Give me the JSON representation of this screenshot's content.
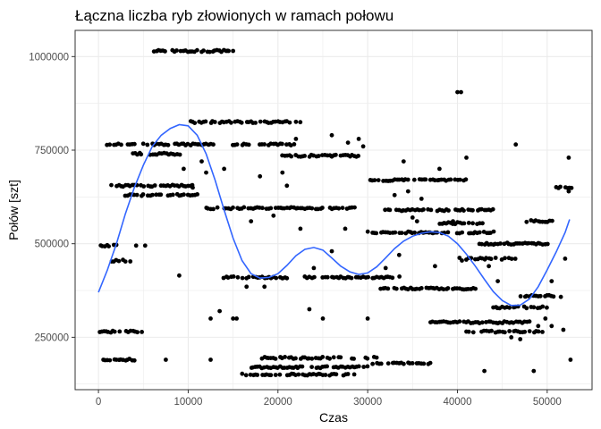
{
  "chart_data": {
    "type": "scatter",
    "title": "Łączna liczba ryb złowionych w ramach połowu",
    "xlabel": "Czas",
    "ylabel": "Połów [szt]",
    "xlim": [
      -2600,
      55000
    ],
    "ylim": [
      110000,
      1070000
    ],
    "x_ticks": [
      0,
      10000,
      20000,
      30000,
      40000,
      50000
    ],
    "y_ticks": [
      250000,
      500000,
      750000,
      1000000
    ],
    "x_tick_labels": [
      "0",
      "10000",
      "20000",
      "30000",
      "40000",
      "50000"
    ],
    "y_tick_labels": [
      "250000",
      "500000",
      "750000",
      "1000000"
    ],
    "grid": true,
    "legend": "none",
    "colors": {
      "points": "#000000",
      "smooth": "#3366ff",
      "grid": "#ebebeb",
      "border": "#333333"
    },
    "point_bands": [
      [
        100,
        5000,
        265000
      ],
      [
        500,
        4800,
        190000
      ],
      [
        1000,
        3800,
        455000
      ],
      [
        200,
        2600,
        495000
      ],
      [
        6200,
        14600,
        1015000
      ],
      [
        1000,
        13200,
        765000
      ],
      [
        3800,
        9200,
        740000
      ],
      [
        1500,
        10500,
        655000
      ],
      [
        3000,
        11000,
        630000
      ],
      [
        10000,
        22500,
        825000
      ],
      [
        12000,
        28500,
        595000
      ],
      [
        15000,
        22000,
        765000
      ],
      [
        20000,
        29000,
        735000
      ],
      [
        14000,
        21000,
        410000
      ],
      [
        23000,
        33500,
        410000
      ],
      [
        18000,
        31000,
        195000
      ],
      [
        17000,
        30000,
        170000
      ],
      [
        16000,
        28500,
        150000
      ],
      [
        30000,
        41000,
        670000
      ],
      [
        32000,
        44000,
        590000
      ],
      [
        30000,
        44000,
        530000
      ],
      [
        31500,
        42000,
        380000
      ],
      [
        37000,
        48000,
        290000
      ],
      [
        41000,
        49500,
        265000
      ],
      [
        30000,
        37000,
        180000
      ],
      [
        38000,
        43000,
        555000
      ],
      [
        42500,
        50000,
        500000
      ],
      [
        40000,
        46500,
        460000
      ],
      [
        44000,
        50000,
        330000
      ],
      [
        47000,
        51500,
        360000
      ],
      [
        51000,
        52800,
        650000
      ],
      [
        47500,
        50500,
        560000
      ]
    ],
    "points": [
      [
        40000,
        905000
      ],
      [
        40400,
        905000
      ],
      [
        21000,
        655000
      ],
      [
        9000,
        415000
      ],
      [
        23500,
        325000
      ],
      [
        13500,
        320000
      ],
      [
        15400,
        300000
      ],
      [
        25000,
        300000
      ],
      [
        30000,
        300000
      ],
      [
        12500,
        300000
      ],
      [
        15000,
        300000
      ],
      [
        7500,
        190000
      ],
      [
        12500,
        190000
      ],
      [
        41000,
        730000
      ],
      [
        46500,
        765000
      ],
      [
        40500,
        455000
      ],
      [
        43000,
        160000
      ],
      [
        48500,
        160000
      ],
      [
        29500,
        760000
      ],
      [
        34000,
        720000
      ],
      [
        52400,
        730000
      ],
      [
        52600,
        190000
      ],
      [
        52000,
        460000
      ],
      [
        52400,
        640000
      ],
      [
        14500,
        1015000
      ],
      [
        15000,
        1015000
      ],
      [
        5200,
        495000
      ],
      [
        4200,
        495000
      ],
      [
        22500,
        540000
      ],
      [
        27500,
        540000
      ],
      [
        26000,
        480000
      ],
      [
        38000,
        700000
      ],
      [
        36000,
        620000
      ],
      [
        33500,
        470000
      ],
      [
        43500,
        440000
      ],
      [
        37500,
        440000
      ],
      [
        32000,
        435000
      ],
      [
        44500,
        400000
      ],
      [
        50500,
        400000
      ],
      [
        41500,
        590000
      ],
      [
        35500,
        560000
      ],
      [
        39500,
        560000
      ],
      [
        49800,
        300000
      ],
      [
        49000,
        280000
      ],
      [
        27800,
        770000
      ],
      [
        29000,
        780000
      ],
      [
        17000,
        560000
      ],
      [
        19500,
        575000
      ],
      [
        16500,
        385000
      ],
      [
        18500,
        385000
      ],
      [
        24000,
        435000
      ],
      [
        10500,
        650000
      ],
      [
        18000,
        680000
      ],
      [
        20500,
        690000
      ],
      [
        11500,
        720000
      ],
      [
        9500,
        700000
      ],
      [
        33000,
        630000
      ],
      [
        34500,
        640000
      ],
      [
        35000,
        570000
      ],
      [
        37000,
        290000
      ],
      [
        46000,
        250000
      ],
      [
        47000,
        245000
      ],
      [
        50500,
        280000
      ],
      [
        51800,
        270000
      ],
      [
        14000,
        700000
      ],
      [
        12000,
        690000
      ],
      [
        22000,
        780000
      ],
      [
        26000,
        790000
      ]
    ],
    "smooth": [
      [
        0,
        370000
      ],
      [
        1000,
        430000
      ],
      [
        2000,
        500000
      ],
      [
        3000,
        580000
      ],
      [
        4000,
        650000
      ],
      [
        5000,
        710000
      ],
      [
        6000,
        760000
      ],
      [
        7000,
        790000
      ],
      [
        8000,
        808000
      ],
      [
        9000,
        818000
      ],
      [
        10000,
        815000
      ],
      [
        11000,
        790000
      ],
      [
        12000,
        740000
      ],
      [
        13000,
        670000
      ],
      [
        14000,
        590000
      ],
      [
        15000,
        515000
      ],
      [
        16000,
        455000
      ],
      [
        17000,
        420000
      ],
      [
        18000,
        408000
      ],
      [
        19000,
        410000
      ],
      [
        20000,
        420000
      ],
      [
        21000,
        442000
      ],
      [
        22000,
        468000
      ],
      [
        23000,
        485000
      ],
      [
        24000,
        490000
      ],
      [
        25000,
        483000
      ],
      [
        26000,
        462000
      ],
      [
        27000,
        440000
      ],
      [
        28000,
        425000
      ],
      [
        29000,
        418000
      ],
      [
        30000,
        422000
      ],
      [
        31000,
        438000
      ],
      [
        32000,
        462000
      ],
      [
        33000,
        487000
      ],
      [
        34000,
        507000
      ],
      [
        35000,
        520000
      ],
      [
        36000,
        528000
      ],
      [
        37000,
        532000
      ],
      [
        38000,
        530000
      ],
      [
        39000,
        520000
      ],
      [
        40000,
        500000
      ],
      [
        41000,
        472000
      ],
      [
        42000,
        440000
      ],
      [
        43000,
        405000
      ],
      [
        44000,
        372000
      ],
      [
        45000,
        348000
      ],
      [
        46000,
        335000
      ],
      [
        47000,
        336000
      ],
      [
        48000,
        352000
      ],
      [
        49000,
        385000
      ],
      [
        50000,
        430000
      ],
      [
        51000,
        478000
      ],
      [
        52000,
        530000
      ],
      [
        52500,
        565000
      ]
    ]
  }
}
